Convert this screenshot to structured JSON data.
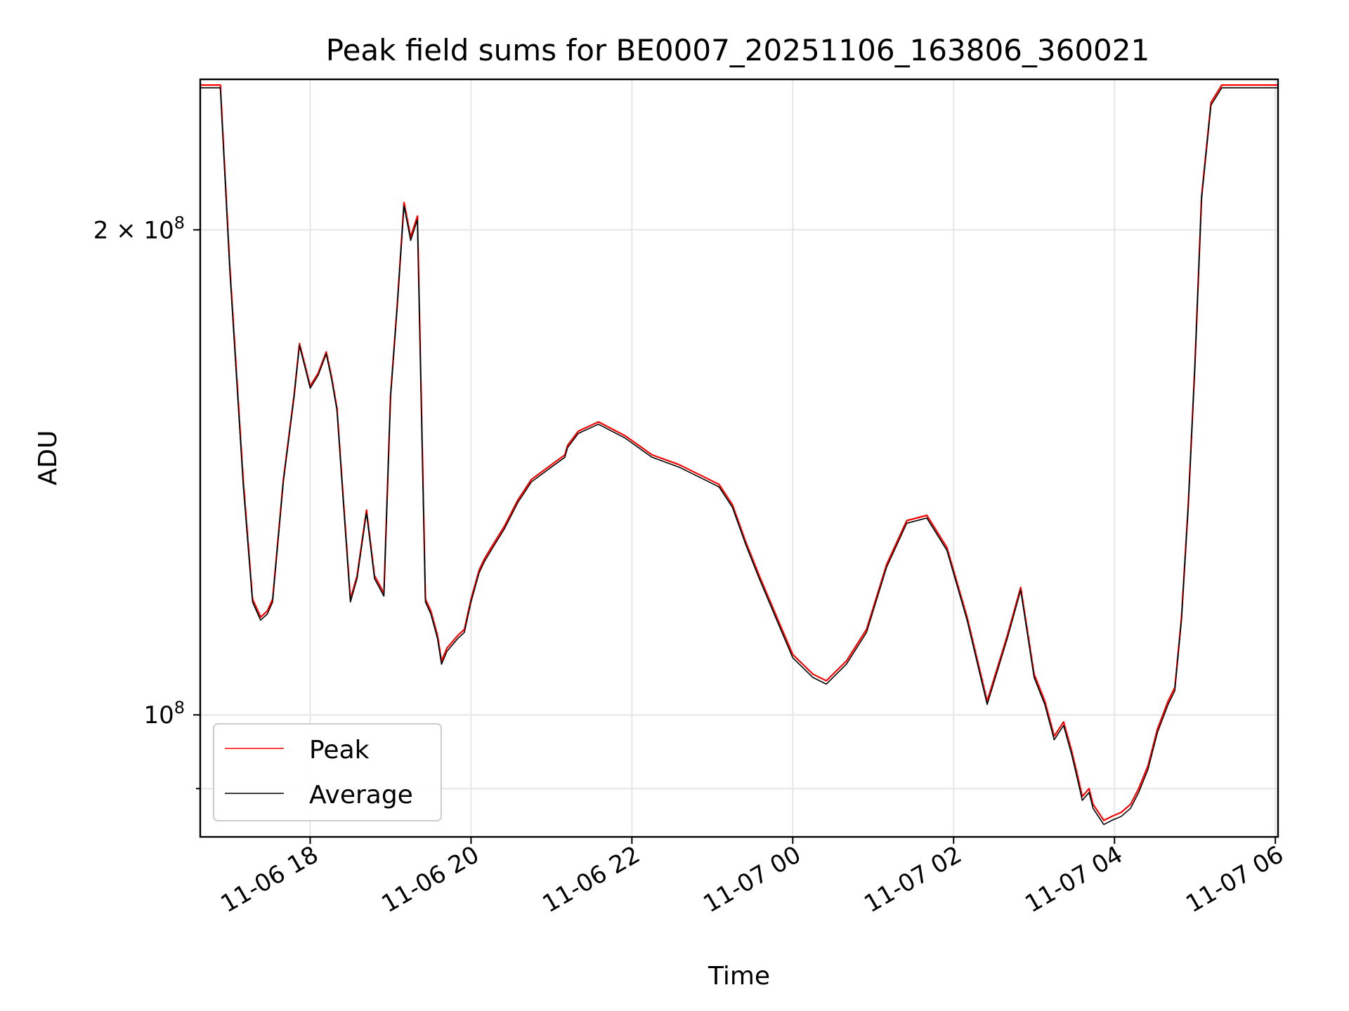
{
  "chart_data": {
    "type": "line",
    "title": "Peak field sums for BE0007_20251106_163806_360021",
    "xlabel": "Time",
    "ylabel": "ADU",
    "x_ticks": [
      "11-06 18",
      "11-06 20",
      "11-06 22",
      "11-07 00",
      "11-07 02",
      "11-07 04",
      "11-07 06"
    ],
    "y_ticks": [
      {
        "value": 100000000,
        "label_base": "10",
        "label_exp": "8"
      },
      {
        "value": 200000000,
        "label_base": "2 × 10",
        "label_exp": "8"
      }
    ],
    "y_scale": "log",
    "ylim": [
      84000000,
      248000000
    ],
    "xlim": [
      "2025-11-06 16:38",
      "2025-11-07 06:02"
    ],
    "grid": true,
    "legend": {
      "placement": "lower-left",
      "entries": [
        "Peak",
        "Average"
      ]
    },
    "colors": {
      "Peak": "#ff0000",
      "Average": "#000000"
    },
    "series": [
      {
        "name": "Peak",
        "x": [
          "2025-11-06 16:38",
          "2025-11-06 16:50",
          "2025-11-06 16:53",
          "2025-11-06 17:00",
          "2025-11-06 17:10",
          "2025-11-06 17:17",
          "2025-11-06 17:23",
          "2025-11-06 17:28",
          "2025-11-06 17:32",
          "2025-11-06 17:40",
          "2025-11-06 17:48",
          "2025-11-06 17:52",
          "2025-11-06 17:56",
          "2025-11-06 18:00",
          "2025-11-06 18:06",
          "2025-11-06 18:12",
          "2025-11-06 18:16",
          "2025-11-06 18:20",
          "2025-11-06 18:25",
          "2025-11-06 18:30",
          "2025-11-06 18:35",
          "2025-11-06 18:42",
          "2025-11-06 18:48",
          "2025-11-06 18:55",
          "2025-11-06 19:00",
          "2025-11-06 19:05",
          "2025-11-06 19:10",
          "2025-11-06 19:15",
          "2025-11-06 19:20",
          "2025-11-06 19:26",
          "2025-11-06 19:30",
          "2025-11-06 19:35",
          "2025-11-06 19:38",
          "2025-11-06 19:42",
          "2025-11-06 19:44",
          "2025-11-06 19:46",
          "2025-11-06 19:50",
          "2025-11-06 19:55",
          "2025-11-06 20:00",
          "2025-11-06 20:06",
          "2025-11-06 20:10",
          "2025-11-06 20:15",
          "2025-11-06 20:25",
          "2025-11-06 20:35",
          "2025-11-06 20:45",
          "2025-11-06 21:00",
          "2025-11-06 21:10",
          "2025-11-06 21:12",
          "2025-11-06 21:20",
          "2025-11-06 21:35",
          "2025-11-06 21:55",
          "2025-11-06 22:00",
          "2025-11-06 22:15",
          "2025-11-06 22:35",
          "2025-11-06 22:50",
          "2025-11-06 23:05",
          "2025-11-06 23:15",
          "2025-11-06 23:25",
          "2025-11-06 23:35",
          "2025-11-06 23:50",
          "2025-11-07 00:00",
          "2025-11-07 00:15",
          "2025-11-07 00:25",
          "2025-11-07 00:40",
          "2025-11-07 00:55",
          "2025-11-07 01:10",
          "2025-11-07 01:25",
          "2025-11-07 01:40",
          "2025-11-07 01:55",
          "2025-11-07 02:10",
          "2025-11-07 02:25",
          "2025-11-07 02:40",
          "2025-11-07 02:50",
          "2025-11-07 03:00",
          "2025-11-07 03:08",
          "2025-11-07 03:15",
          "2025-11-07 03:22",
          "2025-11-07 03:28",
          "2025-11-07 03:32",
          "2025-11-07 03:36",
          "2025-11-07 03:41",
          "2025-11-07 03:44",
          "2025-11-07 03:48",
          "2025-11-07 03:52",
          "2025-11-07 03:58",
          "2025-11-07 04:05",
          "2025-11-07 04:12",
          "2025-11-07 04:18",
          "2025-11-07 04:25",
          "2025-11-07 04:32",
          "2025-11-07 04:40",
          "2025-11-07 04:45",
          "2025-11-07 04:50",
          "2025-11-07 04:55",
          "2025-11-07 05:00",
          "2025-11-07 05:05",
          "2025-11-07 05:12",
          "2025-11-07 05:20",
          "2025-11-07 05:28",
          "2025-11-07 05:36",
          "2025-11-07 05:44",
          "2025-11-07 05:50",
          "2025-11-07 06:02"
        ],
        "y": [
          246000000,
          246000000,
          246000000,
          190000000,
          140000000,
          118000000,
          115000000,
          116000000,
          118000000,
          140000000,
          158000000,
          170000000,
          165000000,
          160000000,
          163000000,
          168000000,
          162000000,
          155000000,
          135000000,
          118000000,
          122000000,
          134000000,
          122000000,
          119000000,
          158000000,
          180000000,
          208000000,
          198000000,
          204000000,
          118000000,
          116000000,
          112000000,
          108000000,
          110000000,
          110500000,
          111000000,
          112000000,
          113000000,
          118000000,
          123000000,
          125000000,
          127000000,
          131000000,
          136000000,
          140000000,
          143000000,
          145000000,
          147000000,
          150000000,
          152000000,
          149000000,
          148000000,
          145000000,
          143000000,
          141000000,
          139000000,
          135000000,
          128000000,
          122000000,
          114000000,
          109000000,
          106000000,
          105000000,
          108000000,
          113000000,
          124000000,
          132000000,
          133000000,
          127000000,
          115000000,
          102000000,
          112000000,
          120000000,
          106000000,
          102000000,
          97000000,
          99000000,
          95000000,
          92000000,
          89000000,
          90000000,
          88000000,
          87000000,
          86000000,
          86500000,
          87000000,
          88000000,
          90000000,
          93000000,
          98000000,
          102000000,
          104000000,
          115000000,
          135000000,
          165000000,
          210000000,
          240000000,
          246000000,
          246000000,
          246000000,
          246000000,
          246000000,
          246000000
        ],
        "color": "#ff0000"
      },
      {
        "name": "Average",
        "x": [
          "2025-11-06 16:38",
          "2025-11-06 16:50",
          "2025-11-06 16:53",
          "2025-11-06 17:00",
          "2025-11-06 17:10",
          "2025-11-06 17:17",
          "2025-11-06 17:23",
          "2025-11-06 17:28",
          "2025-11-06 17:32",
          "2025-11-06 17:40",
          "2025-11-06 17:48",
          "2025-11-06 17:52",
          "2025-11-06 17:56",
          "2025-11-06 18:00",
          "2025-11-06 18:06",
          "2025-11-06 18:12",
          "2025-11-06 18:16",
          "2025-11-06 18:20",
          "2025-11-06 18:25",
          "2025-11-06 18:30",
          "2025-11-06 18:35",
          "2025-11-06 18:42",
          "2025-11-06 18:48",
          "2025-11-06 18:55",
          "2025-11-06 19:00",
          "2025-11-06 19:05",
          "2025-11-06 19:10",
          "2025-11-06 19:15",
          "2025-11-06 19:20",
          "2025-11-06 19:26",
          "2025-11-06 19:30",
          "2025-11-06 19:35",
          "2025-11-06 19:38",
          "2025-11-06 19:42",
          "2025-11-06 19:44",
          "2025-11-06 19:46",
          "2025-11-06 19:50",
          "2025-11-06 19:55",
          "2025-11-06 20:00",
          "2025-11-06 20:06",
          "2025-11-06 20:10",
          "2025-11-06 20:15",
          "2025-11-06 20:25",
          "2025-11-06 20:35",
          "2025-11-06 20:45",
          "2025-11-06 21:00",
          "2025-11-06 21:10",
          "2025-11-06 21:12",
          "2025-11-06 21:20",
          "2025-11-06 21:35",
          "2025-11-06 21:55",
          "2025-11-06 22:00",
          "2025-11-06 22:15",
          "2025-11-06 22:35",
          "2025-11-06 22:50",
          "2025-11-06 23:05",
          "2025-11-06 23:15",
          "2025-11-06 23:25",
          "2025-11-06 23:35",
          "2025-11-06 23:50",
          "2025-11-07 00:00",
          "2025-11-07 00:15",
          "2025-11-07 00:25",
          "2025-11-07 00:40",
          "2025-11-07 00:55",
          "2025-11-07 01:10",
          "2025-11-07 01:25",
          "2025-11-07 01:40",
          "2025-11-07 01:55",
          "2025-11-07 02:10",
          "2025-11-07 02:25",
          "2025-11-07 02:40",
          "2025-11-07 02:50",
          "2025-11-07 03:00",
          "2025-11-07 03:08",
          "2025-11-07 03:15",
          "2025-11-07 03:22",
          "2025-11-07 03:28",
          "2025-11-07 03:32",
          "2025-11-07 03:36",
          "2025-11-07 03:41",
          "2025-11-07 03:44",
          "2025-11-07 03:48",
          "2025-11-07 03:52",
          "2025-11-07 03:58",
          "2025-11-07 04:05",
          "2025-11-07 04:12",
          "2025-11-07 04:18",
          "2025-11-07 04:25",
          "2025-11-07 04:32",
          "2025-11-07 04:40",
          "2025-11-07 04:45",
          "2025-11-07 04:50",
          "2025-11-07 04:55",
          "2025-11-07 05:00",
          "2025-11-07 05:05",
          "2025-11-07 05:12",
          "2025-11-07 05:20",
          "2025-11-07 05:28",
          "2025-11-07 05:36",
          "2025-11-07 05:44",
          "2025-11-07 05:50",
          "2025-11-07 06:02"
        ],
        "y": [
          245000000,
          245000000,
          245000000,
          189000000,
          139000000,
          117500000,
          114500000,
          115500000,
          117500000,
          139500000,
          157500000,
          169500000,
          164500000,
          159500000,
          162500000,
          167500000,
          161500000,
          154500000,
          134500000,
          117500000,
          121500000,
          133500000,
          121500000,
          118500000,
          157500000,
          179500000,
          207000000,
          197000000,
          203000000,
          117500000,
          115500000,
          111500000,
          107500000,
          109500000,
          110000000,
          110500000,
          111500000,
          112500000,
          117500000,
          122500000,
          124500000,
          126500000,
          130500000,
          135500000,
          139500000,
          142500000,
          144500000,
          146500000,
          149500000,
          151500000,
          148500000,
          147500000,
          144500000,
          142500000,
          140500000,
          138500000,
          134500000,
          127500000,
          121500000,
          113500000,
          108500000,
          105500000,
          104500000,
          107500000,
          112500000,
          123500000,
          131500000,
          132500000,
          126500000,
          114500000,
          101500000,
          111500000,
          119500000,
          105500000,
          101500000,
          96500000,
          98500000,
          94500000,
          91500000,
          88500000,
          89500000,
          87500000,
          86500000,
          85500000,
          86000000,
          86500000,
          87500000,
          89500000,
          92500000,
          97500000,
          101500000,
          103500000,
          114500000,
          134500000,
          164500000,
          209000000,
          239000000,
          245000000,
          245000000,
          245000000,
          245000000,
          245000000,
          245000000
        ],
        "color": "#000000"
      }
    ]
  }
}
